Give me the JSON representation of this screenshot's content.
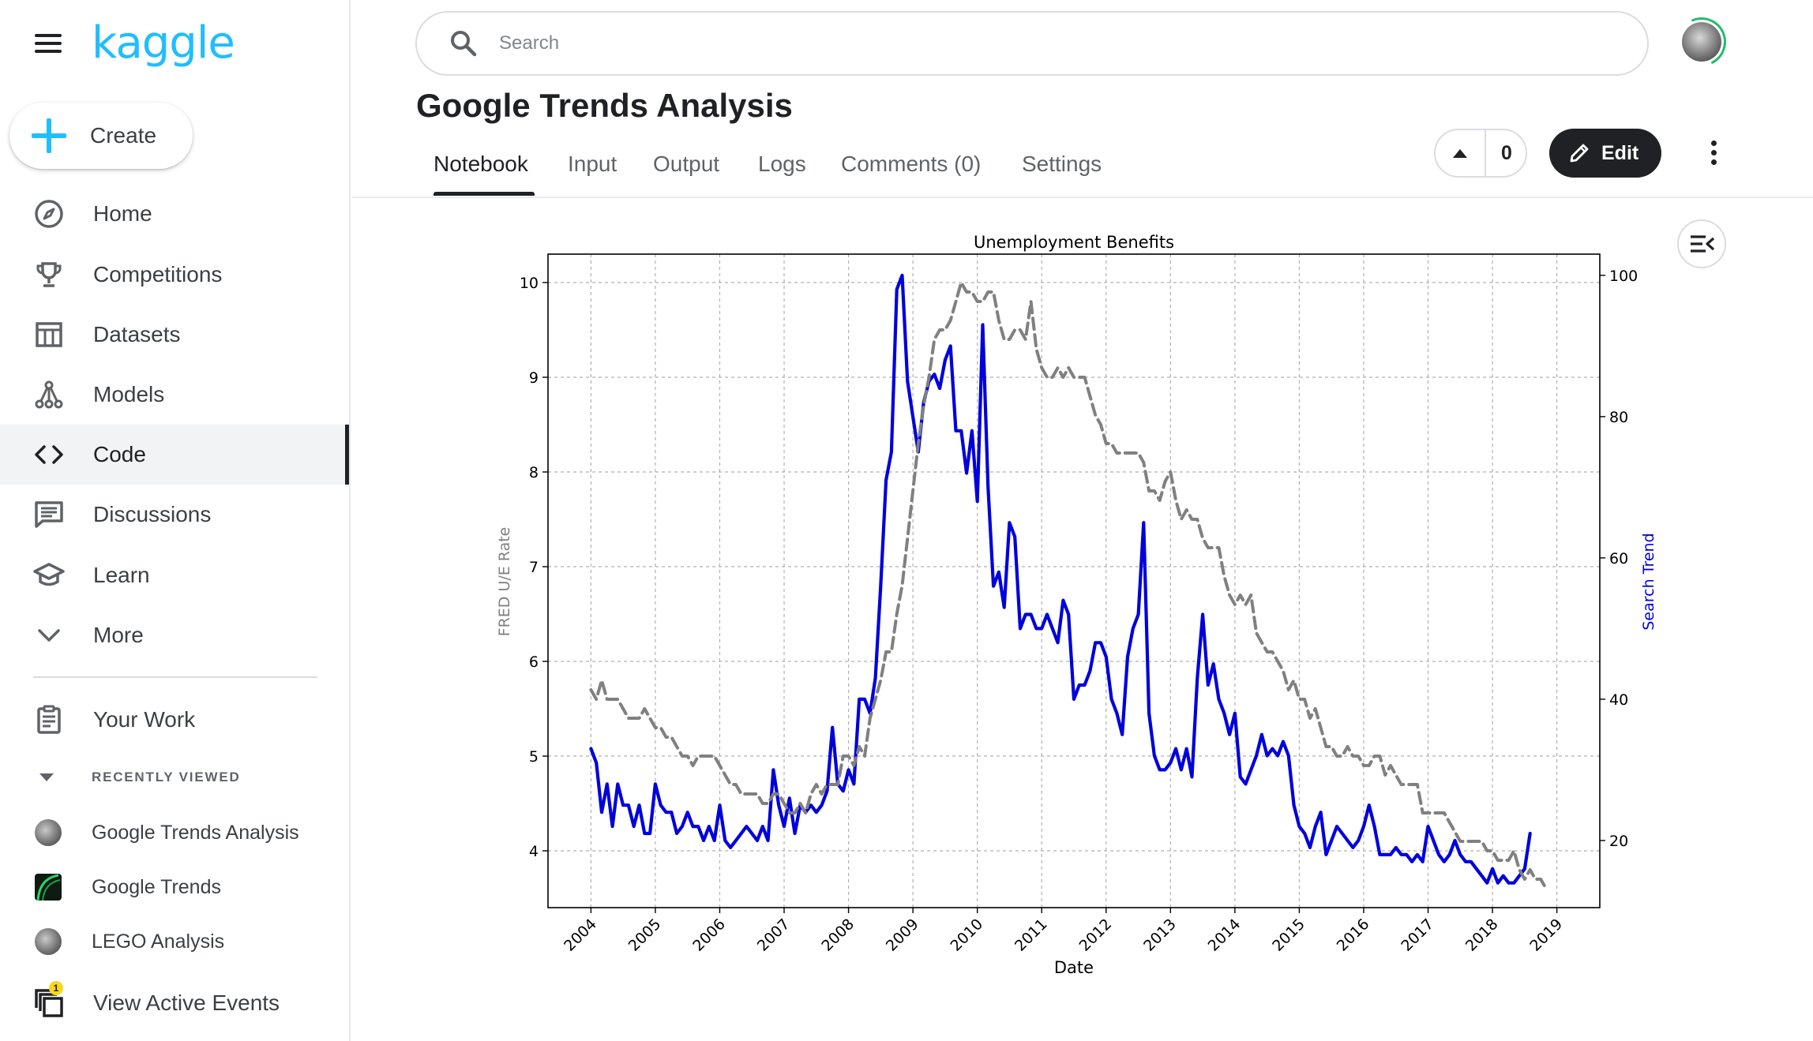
{
  "app": {
    "logo": "kaggle"
  },
  "sidebar": {
    "create_label": "Create",
    "items": [
      {
        "label": "Home",
        "icon": "compass-icon"
      },
      {
        "label": "Competitions",
        "icon": "trophy-icon"
      },
      {
        "label": "Datasets",
        "icon": "table-icon"
      },
      {
        "label": "Models",
        "icon": "models-icon"
      },
      {
        "label": "Code",
        "icon": "code-icon",
        "active": true
      },
      {
        "label": "Discussions",
        "icon": "comments-icon"
      },
      {
        "label": "Learn",
        "icon": "school-icon"
      },
      {
        "label": "More",
        "icon": "chevron-down-icon"
      }
    ],
    "your_work": "Your Work",
    "recently_viewed": "RECENTLY VIEWED",
    "recent": [
      {
        "label": "Google Trends Analysis"
      },
      {
        "label": "Google Trends"
      },
      {
        "label": "LEGO Analysis"
      }
    ],
    "events": {
      "label": "View Active Events",
      "badge": "1"
    }
  },
  "search": {
    "placeholder": "Search"
  },
  "notebook": {
    "title": "Google Trends Analysis",
    "tabs": [
      "Notebook",
      "Input",
      "Output",
      "Logs",
      "Comments (0)",
      "Settings"
    ],
    "active_tab": "Notebook",
    "votes": "0",
    "edit_label": "Edit"
  },
  "colors": {
    "brand": "#20beff",
    "search_line": "#0000dd",
    "fred_line": "#808080",
    "dark": "#202124"
  },
  "chart_data": {
    "type": "line",
    "title": "Unemployment Benefits",
    "xlabel": "Date",
    "ylabel_left": "FRED U/E Rate",
    "ylabel_right": "Search Trend",
    "x_ticks": [
      "2004",
      "2005",
      "2006",
      "2007",
      "2008",
      "2009",
      "2010",
      "2011",
      "2012",
      "2013",
      "2014",
      "2015",
      "2016",
      "2017",
      "2018",
      "2019"
    ],
    "y_left_ticks": [
      "4",
      "5",
      "6",
      "7",
      "8",
      "9",
      "10"
    ],
    "y_right_ticks": [
      "20",
      "40",
      "60",
      "80",
      "100"
    ],
    "ylim_left": [
      3.4,
      10.3
    ],
    "ylim_right": [
      10.5,
      103
    ],
    "xlim": [
      "2003-05",
      "2019-09"
    ],
    "grid": true,
    "series": [
      {
        "name": "FRED U/E Rate",
        "axis": "left",
        "style": "dashed",
        "color": "#808080",
        "start": "2004-01",
        "values": [
          5.7,
          5.6,
          5.8,
          5.6,
          5.6,
          5.6,
          5.5,
          5.4,
          5.4,
          5.4,
          5.5,
          5.4,
          5.3,
          5.3,
          5.2,
          5.2,
          5.1,
          5.0,
          5.0,
          4.9,
          5.0,
          5.0,
          5.0,
          5.0,
          4.9,
          4.8,
          4.7,
          4.7,
          4.6,
          4.6,
          4.6,
          4.6,
          4.5,
          4.5,
          4.6,
          4.6,
          4.5,
          4.4,
          4.4,
          4.5,
          4.4,
          4.6,
          4.7,
          4.6,
          4.7,
          4.7,
          4.7,
          5.0,
          5.0,
          4.9,
          5.1,
          5.0,
          5.4,
          5.6,
          5.8,
          6.1,
          6.1,
          6.5,
          6.8,
          7.3,
          7.8,
          8.3,
          8.7,
          9.0,
          9.4,
          9.5,
          9.5,
          9.6,
          9.8,
          10.0,
          9.9,
          9.9,
          9.8,
          9.8,
          9.9,
          9.9,
          9.6,
          9.4,
          9.4,
          9.5,
          9.5,
          9.4,
          9.8,
          9.3,
          9.1,
          9.0,
          9.0,
          9.1,
          9.0,
          9.1,
          9.0,
          9.0,
          9.0,
          8.8,
          8.6,
          8.5,
          8.3,
          8.3,
          8.2,
          8.2,
          8.2,
          8.2,
          8.2,
          8.1,
          7.8,
          7.8,
          7.7,
          7.9,
          8.0,
          7.7,
          7.5,
          7.6,
          7.5,
          7.5,
          7.3,
          7.2,
          7.2,
          7.2,
          6.9,
          6.7,
          6.6,
          6.7,
          6.6,
          6.7,
          6.3,
          6.2,
          6.1,
          6.1,
          6.0,
          5.9,
          5.7,
          5.8,
          5.6,
          5.6,
          5.4,
          5.5,
          5.3,
          5.1,
          5.1,
          5.0,
          5.0,
          5.1,
          5.0,
          5.0,
          4.9,
          4.9,
          5.0,
          5.0,
          4.8,
          4.9,
          4.8,
          4.7,
          4.7,
          4.7,
          4.7,
          4.4,
          4.4,
          4.4,
          4.4,
          4.4,
          4.3,
          4.2,
          4.1,
          4.1,
          4.1,
          4.1,
          4.1,
          4.0,
          4.0,
          3.9,
          3.9,
          3.9,
          4.0,
          3.8,
          3.7,
          3.8,
          3.7,
          3.7,
          3.6
        ]
      },
      {
        "name": "Search Trend",
        "axis": "right",
        "style": "solid",
        "color": "#0000dd",
        "start": "2004-01",
        "values": [
          33,
          31,
          24,
          28,
          22,
          28,
          25,
          25,
          22,
          25,
          21,
          21,
          28,
          25,
          24,
          24,
          21,
          22,
          24,
          22,
          22,
          20,
          22,
          20,
          25,
          20,
          19,
          20,
          21,
          22,
          21,
          20,
          22,
          20,
          30,
          25,
          22,
          26,
          21,
          25,
          24,
          25,
          24,
          25,
          27,
          36,
          28,
          27,
          30,
          28,
          40,
          40,
          38,
          43,
          56,
          71,
          75,
          98,
          100,
          85,
          80,
          75,
          82,
          85,
          86,
          84,
          88,
          90,
          78,
          78,
          72,
          78,
          68,
          93,
          70,
          56,
          58,
          53,
          65,
          63,
          50,
          52,
          52,
          50,
          50,
          52,
          50,
          48,
          54,
          52,
          40,
          42,
          42,
          44,
          48,
          48,
          46,
          40,
          38,
          35,
          46,
          50,
          52,
          65,
          38,
          32,
          30,
          30,
          31,
          33,
          30,
          33,
          29,
          43,
          52,
          42,
          45,
          40,
          38,
          35,
          38,
          29,
          28,
          30,
          32,
          35,
          32,
          33,
          32,
          34,
          32,
          25,
          22,
          21,
          19,
          22,
          24,
          18,
          20,
          22,
          21,
          20,
          19,
          20,
          22,
          25,
          22,
          18,
          18,
          18,
          19,
          18,
          18,
          17,
          18,
          17,
          22,
          20,
          18,
          17,
          18,
          20,
          18,
          17,
          17,
          16,
          15,
          14,
          16,
          14,
          15,
          14,
          14,
          15,
          16,
          21
        ]
      }
    ]
  }
}
